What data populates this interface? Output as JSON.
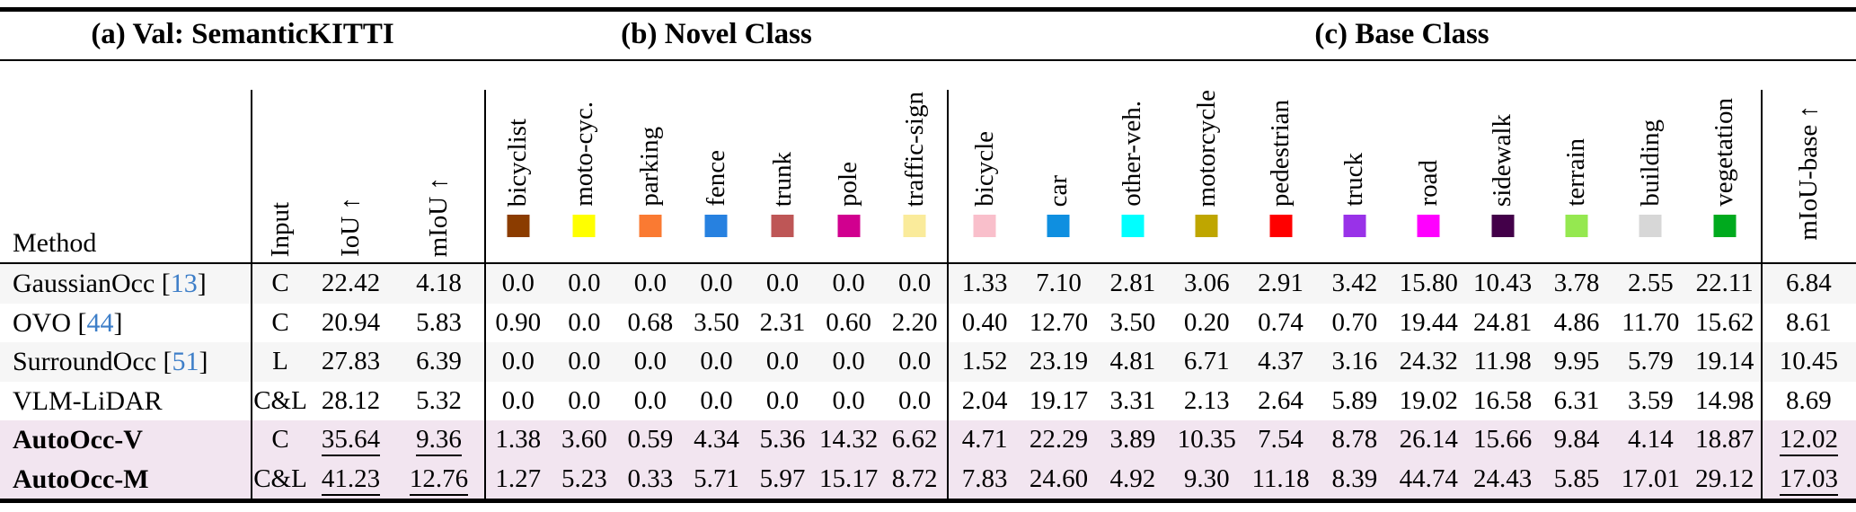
{
  "section_titles": {
    "a": "(a) Val: SemanticKITTI",
    "b": "(b) Novel Class",
    "c": "(c) Base Class"
  },
  "columns": {
    "method": "Method",
    "input": "Input",
    "iou": "IoU ↑",
    "miou": "mIoU ↑",
    "miou_base": "mIoU-base ↑",
    "novel_classes": [
      {
        "label": "bicyclist",
        "color": "#8B3C00"
      },
      {
        "label": "moto-cyc.",
        "color": "#FFFF00"
      },
      {
        "label": "parking",
        "color": "#FA7A32"
      },
      {
        "label": "fence",
        "color": "#2781E0"
      },
      {
        "label": "trunk",
        "color": "#BE5656"
      },
      {
        "label": "pole",
        "color": "#D1008F"
      },
      {
        "label": "traffic-sign",
        "color": "#FAEB9B"
      }
    ],
    "base_classes": [
      {
        "label": "bicycle",
        "color": "#F9BFCB"
      },
      {
        "label": "car",
        "color": "#0F8FE0"
      },
      {
        "label": "other-veh.",
        "color": "#00FFFF"
      },
      {
        "label": "motorcycle",
        "color": "#BFA600"
      },
      {
        "label": "pedestrian",
        "color": "#FF0000"
      },
      {
        "label": "truck",
        "color": "#9932E8"
      },
      {
        "label": "road",
        "color": "#FF00FF"
      },
      {
        "label": "sidewalk",
        "color": "#430049"
      },
      {
        "label": "terrain",
        "color": "#95E850"
      },
      {
        "label": "building",
        "color": "#D7D7D7"
      },
      {
        "label": "vegetation",
        "color": "#00AA1E"
      }
    ]
  },
  "rows": [
    {
      "method": "GaussianOcc",
      "citation": "13",
      "input": "C",
      "iou": "22.42",
      "miou": "4.18",
      "novel": [
        "0.0",
        "0.0",
        "0.0",
        "0.0",
        "0.0",
        "0.0",
        "0.0"
      ],
      "base": [
        "1.33",
        "7.10",
        "2.81",
        "3.06",
        "2.91",
        "3.42",
        "15.80",
        "10.43",
        "3.78",
        "2.55",
        "22.11"
      ],
      "miou_base": "6.84",
      "bold": false,
      "highlight": false,
      "underline": []
    },
    {
      "method": "OVO",
      "citation": "44",
      "input": "C",
      "iou": "20.94",
      "miou": "5.83",
      "novel": [
        "0.90",
        "0.0",
        "0.68",
        "3.50",
        "2.31",
        "0.60",
        "2.20"
      ],
      "base": [
        "0.40",
        "12.70",
        "3.50",
        "0.20",
        "0.74",
        "0.70",
        "19.44",
        "24.81",
        "4.86",
        "11.70",
        "15.62"
      ],
      "miou_base": "8.61",
      "bold": false,
      "highlight": false,
      "underline": []
    },
    {
      "method": "SurroundOcc",
      "citation": "51",
      "input": "L",
      "iou": "27.83",
      "miou": "6.39",
      "novel": [
        "0.0",
        "0.0",
        "0.0",
        "0.0",
        "0.0",
        "0.0",
        "0.0"
      ],
      "base": [
        "1.52",
        "23.19",
        "4.81",
        "6.71",
        "4.37",
        "3.16",
        "24.32",
        "11.98",
        "9.95",
        "5.79",
        "19.14"
      ],
      "miou_base": "10.45",
      "bold": false,
      "highlight": false,
      "underline": []
    },
    {
      "method": "VLM-LiDAR",
      "citation": "",
      "input": "C&L",
      "iou": "28.12",
      "miou": "5.32",
      "novel": [
        "0.0",
        "0.0",
        "0.0",
        "0.0",
        "0.0",
        "0.0",
        "0.0"
      ],
      "base": [
        "2.04",
        "19.17",
        "3.31",
        "2.13",
        "2.64",
        "5.89",
        "19.02",
        "16.58",
        "6.31",
        "3.59",
        "14.98"
      ],
      "miou_base": "8.69",
      "bold": false,
      "highlight": false,
      "underline": []
    },
    {
      "method": "AutoOcc-V",
      "citation": "",
      "input": "C",
      "iou": "35.64",
      "miou": "9.36",
      "novel": [
        "1.38",
        "3.60",
        "0.59",
        "4.34",
        "5.36",
        "14.32",
        "6.62"
      ],
      "base": [
        "4.71",
        "22.29",
        "3.89",
        "10.35",
        "7.54",
        "8.78",
        "26.14",
        "15.66",
        "9.84",
        "4.14",
        "18.87"
      ],
      "miou_base": "12.02",
      "bold": true,
      "highlight": true,
      "underline": [
        "iou",
        "miou",
        "miou_base"
      ]
    },
    {
      "method": "AutoOcc-M",
      "citation": "",
      "input": "C&L",
      "iou": "41.23",
      "miou": "12.76",
      "novel": [
        "1.27",
        "5.23",
        "0.33",
        "5.71",
        "5.97",
        "15.17",
        "8.72"
      ],
      "base": [
        "7.83",
        "24.60",
        "4.92",
        "9.30",
        "11.18",
        "8.39",
        "44.74",
        "24.43",
        "5.85",
        "17.01",
        "29.12"
      ],
      "miou_base": "17.03",
      "bold": true,
      "highlight": true,
      "underline": [
        "iou",
        "miou",
        "miou_base"
      ]
    }
  ],
  "styles": {
    "highlight_row_bg": "#F2E5F0",
    "stripe_row_bg": "#F6F6F6",
    "plain_row_bg": "#FFFFFF",
    "citation_color": "#3D7EC8"
  }
}
